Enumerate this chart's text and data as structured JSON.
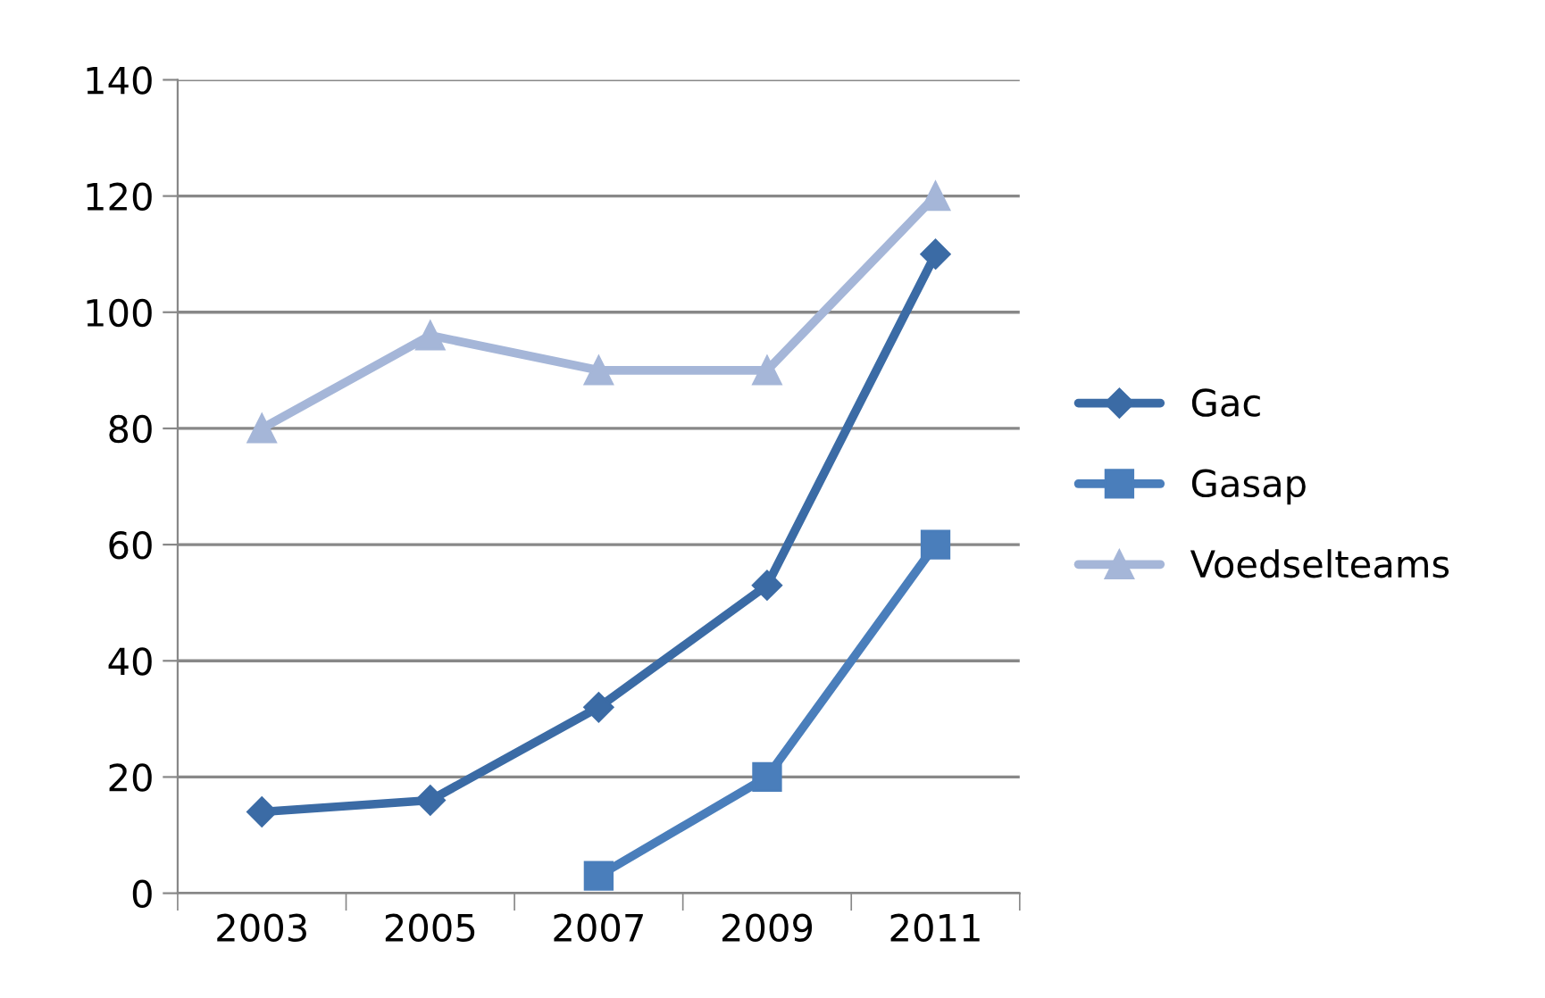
{
  "chart_data": {
    "type": "line",
    "categories": [
      "2003",
      "2005",
      "2007",
      "2009",
      "2011"
    ],
    "series": [
      {
        "name": "Gac",
        "color": "#3b6ba5",
        "marker": "diamond",
        "values": [
          14,
          16,
          32,
          53,
          110
        ]
      },
      {
        "name": "Gasap",
        "color": "#4a7ebb",
        "marker": "square",
        "values": [
          null,
          null,
          3,
          20,
          60
        ]
      },
      {
        "name": "Voedselteams",
        "color": "#a5b6d8",
        "marker": "triangle",
        "values": [
          80,
          96,
          90,
          90,
          120
        ]
      }
    ],
    "ylim": [
      0,
      140
    ],
    "yticks": [
      0,
      20,
      40,
      60,
      80,
      100,
      120,
      140
    ],
    "grid": "y",
    "legend": "right",
    "line_style": "solid"
  }
}
